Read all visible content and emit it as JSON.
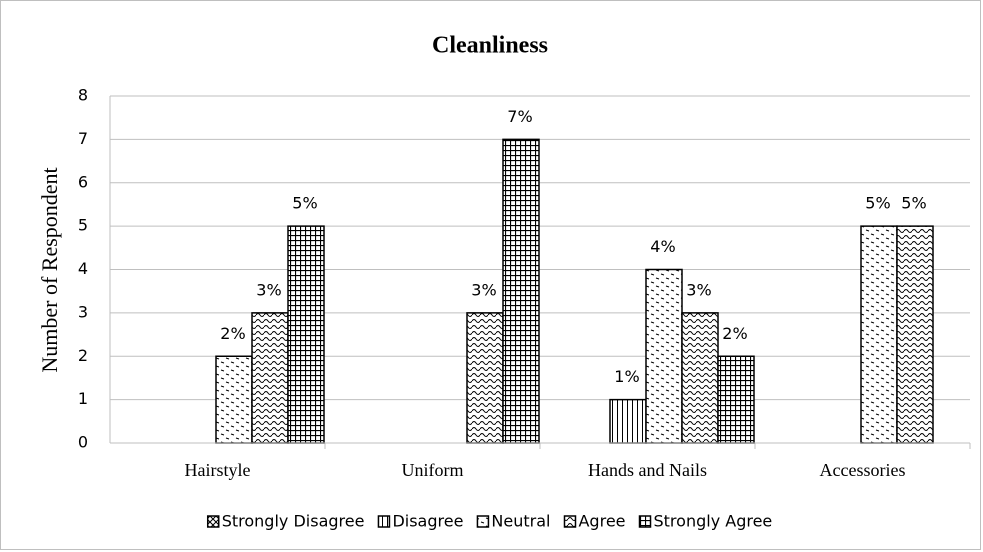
{
  "chart_data": {
    "type": "bar",
    "title": "Cleanliness",
    "y_label": "Number of Respondent",
    "categories": [
      "Hairstyle",
      "Uniform",
      "Hands and Nails",
      "Accessories"
    ],
    "series": [
      {
        "name": "Strongly Disagree",
        "color": "#000000",
        "pattern": "crosshatch",
        "values": [
          null,
          null,
          null,
          null
        ],
        "value_labels": [
          null,
          null,
          null,
          null
        ]
      },
      {
        "name": "Disagree",
        "color": "#000000",
        "pattern": "vertical",
        "values": [
          null,
          null,
          1,
          null
        ],
        "value_labels": [
          null,
          null,
          "1%",
          null
        ]
      },
      {
        "name": "Neutral",
        "color": "#000000",
        "pattern": "dashes",
        "values": [
          2,
          null,
          4,
          5
        ],
        "value_labels": [
          "2%",
          null,
          "4%",
          "5%"
        ]
      },
      {
        "name": "Agree",
        "color": "#000000",
        "pattern": "wave",
        "values": [
          3,
          3,
          3,
          5
        ],
        "value_labels": [
          "3%",
          "3%",
          "3%",
          "5%"
        ]
      },
      {
        "name": "Strongly Agree",
        "color": "#000000",
        "pattern": "grid",
        "values": [
          5,
          7,
          2,
          null
        ],
        "value_labels": [
          "5%",
          "7%",
          "2%",
          null
        ]
      }
    ],
    "ylim": [
      0,
      8
    ],
    "yticks": [
      0,
      1,
      2,
      3,
      4,
      5,
      6,
      7,
      8
    ],
    "grid": true,
    "legend": "bottom"
  }
}
